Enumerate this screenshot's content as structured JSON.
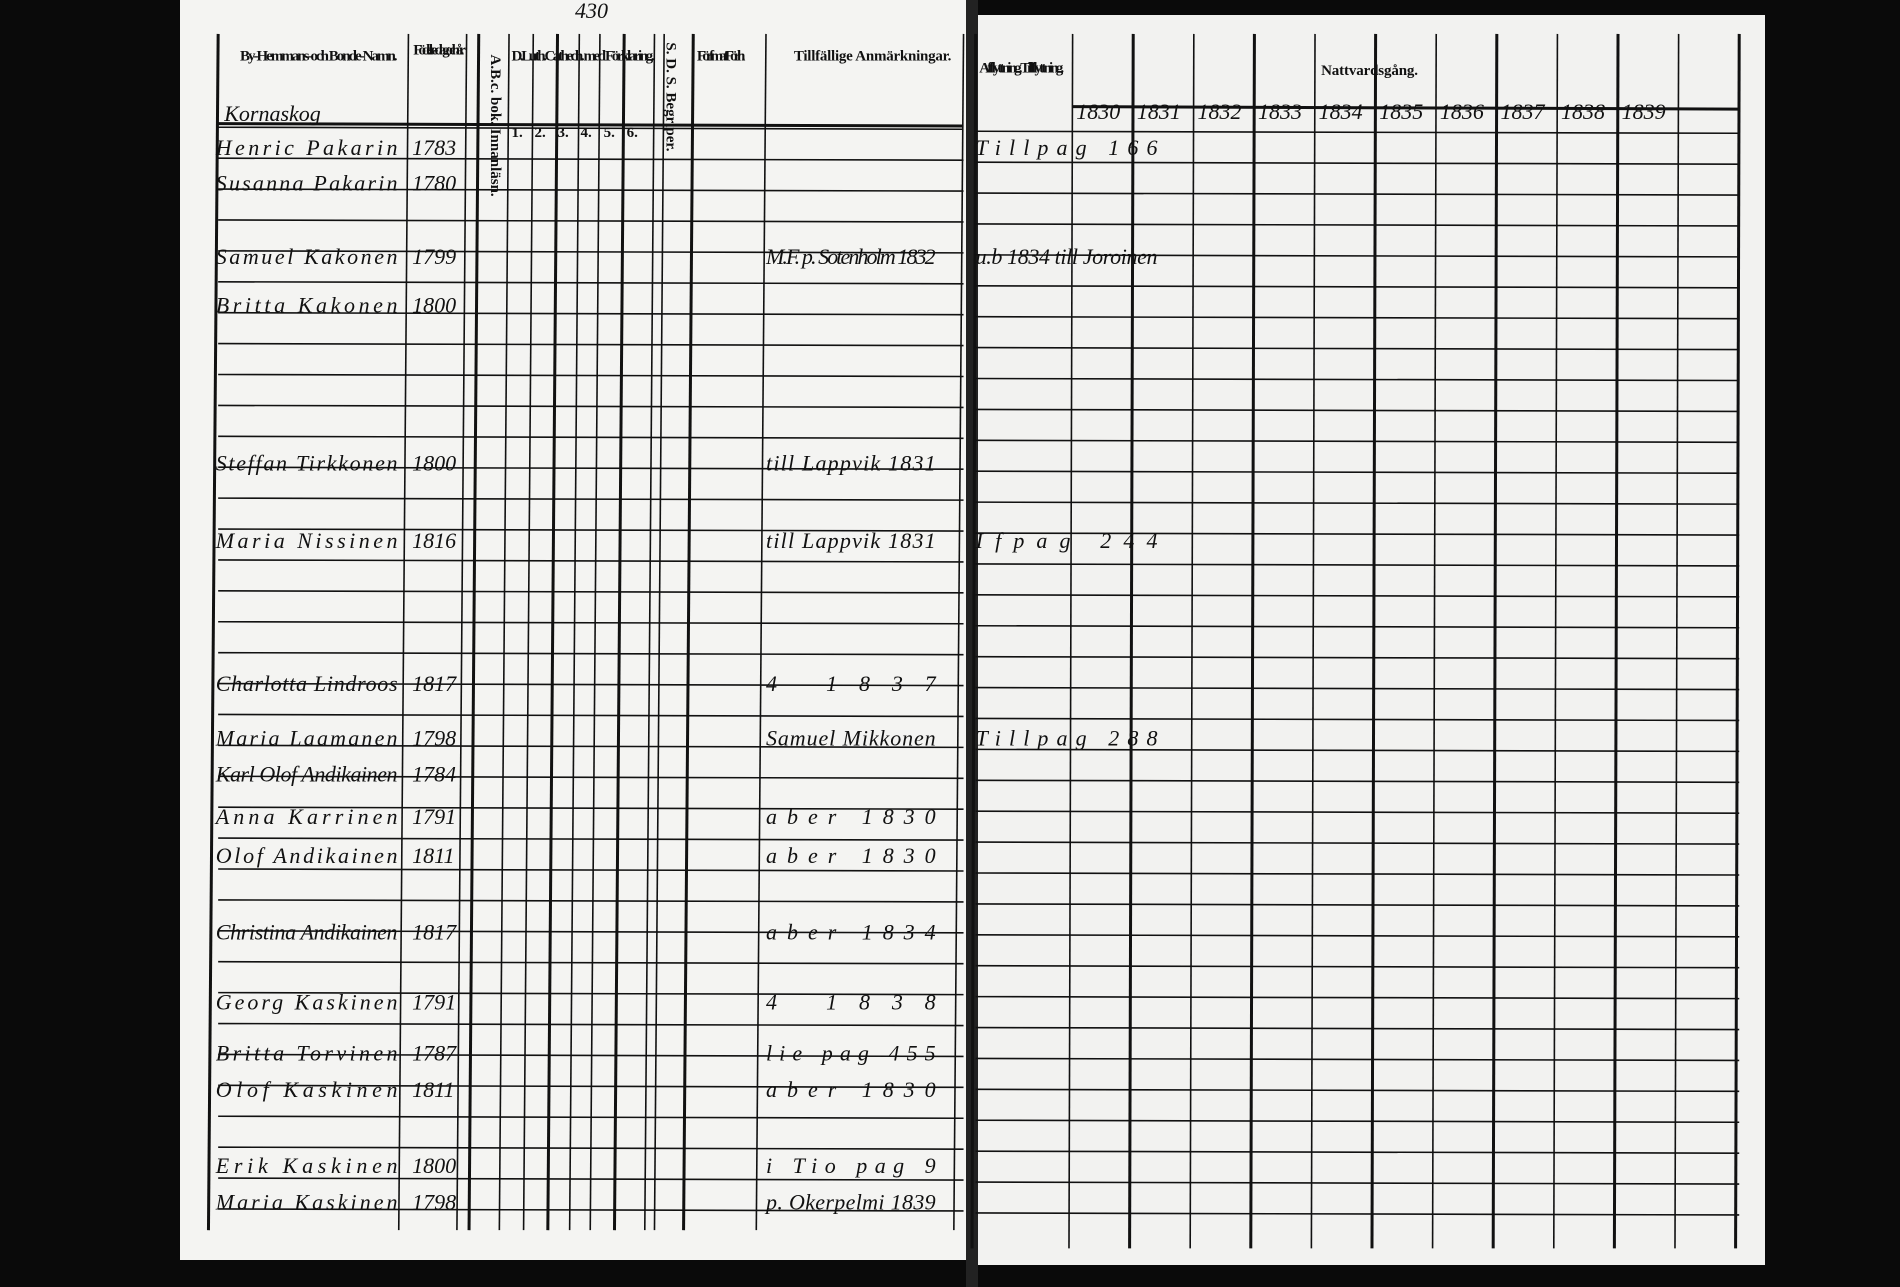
{
  "page_number": "430",
  "left_page": {
    "headers": {
      "name": "By-Hemmans-och Bonde-Namn.",
      "birth": "Födelse-dag och år.",
      "abc": "A.B.c. bok. Innanläsn.",
      "catechism": "D.Luth.Cathech. med Förklaring.",
      "understands": "S. D. S. Begriper.",
      "reasoning": "Förf. mat. Förh.",
      "remarks": "Tillfällige Anmärkningar."
    },
    "catechism_columns": [
      "1.",
      "2.",
      "3.",
      "4.",
      "5.",
      "6."
    ],
    "village": "Kornaskog",
    "rows": [
      {
        "name": "Henric Pakarin",
        "born": "1783"
      },
      {
        "name": "Susanna Pakarin",
        "born": "1780"
      },
      {
        "name": "Samuel Kakonen",
        "born": "1799",
        "note": "M.F. p. Sotenholm 1832"
      },
      {
        "name": "Britta Kakonen",
        "born": "1800"
      },
      {
        "name": "Steffan Tirkkonen",
        "born": "1800",
        "note": "till Lappvik 1831"
      },
      {
        "name": "Maria Nissinen",
        "born": "1816",
        "note": "till Lappvik 1831"
      },
      {
        "name": "Charlotta Lindroos",
        "born": "1817",
        "note": "4 1837"
      },
      {
        "name": "Maria Laamanen",
        "born": "1798",
        "note": "Samuel Mikkonen"
      },
      {
        "name": "Karl Olof Andikainen",
        "born": "1784"
      },
      {
        "name": "Anna Karrinen",
        "born": "1791",
        "note": "aber 1830"
      },
      {
        "name": "Olof Andikainen",
        "born": "1811",
        "note": "aber 1830"
      },
      {
        "name": "Christina Andikainen",
        "born": "1817",
        "note": "aber 1834"
      },
      {
        "name": "Georg Kaskinen",
        "born": "1791",
        "note": "4 1838"
      },
      {
        "name": "Britta Torvinen",
        "born": "1787",
        "note": "lie pag 455"
      },
      {
        "name": "Olof Kaskinen",
        "born": "1811",
        "note": "aber 1830"
      },
      {
        "name": "Erik Kaskinen",
        "born": "1800",
        "note": "i Tio pag 9"
      },
      {
        "name": "Maria Kaskinen",
        "born": "1798",
        "note": "p. Okerpelmi 1839"
      }
    ]
  },
  "right_page": {
    "headers": {
      "moving": "Afflyttning. Tillflyttning.",
      "communion": "Nattvardsgång."
    },
    "years": [
      "1830",
      "1831",
      "1832",
      "1833",
      "1834",
      "1835",
      "1836",
      "1837",
      "1838",
      "1839"
    ],
    "moves": [
      {
        "row": 0,
        "text": "Tillpag 166"
      },
      {
        "row": 2,
        "text": "u.b 1834 till Joroinen"
      },
      {
        "row": 5,
        "text": "Ifpag 244"
      },
      {
        "row": 7,
        "text": "Tillpag 288"
      }
    ]
  }
}
